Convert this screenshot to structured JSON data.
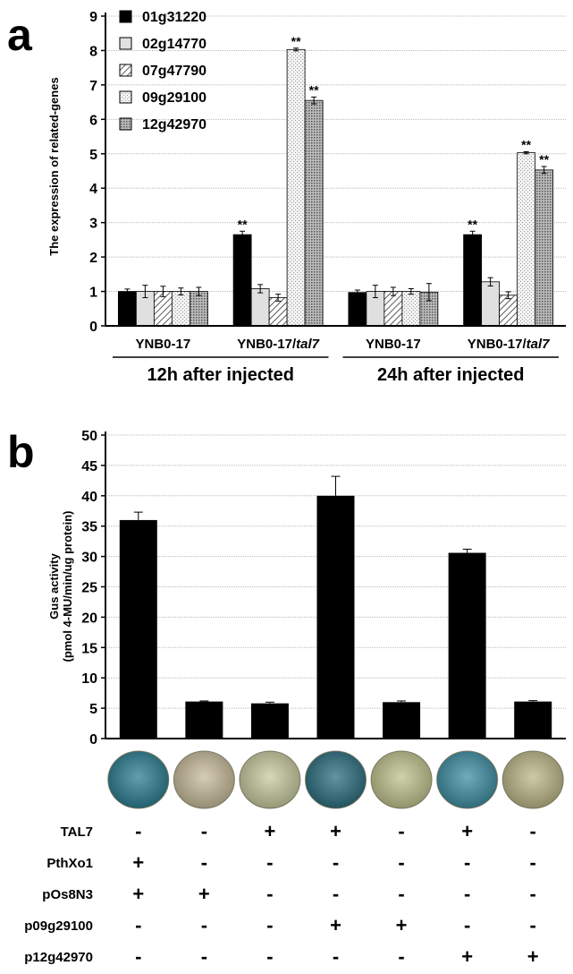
{
  "figure": {
    "panel_a_label": "a",
    "panel_b_label": "b"
  },
  "chart_data": [
    {
      "type": "bar",
      "panel": "a",
      "title": "",
      "ylabel": "The expression of related-genes",
      "xlabel": "",
      "ylim": [
        0,
        9
      ],
      "yticks": [
        0,
        1,
        2,
        3,
        4,
        5,
        6,
        7,
        8,
        9
      ],
      "grid": true,
      "legend": "top-left",
      "categories": [
        "YNB0-17",
        "YNB0-17/tal7",
        "YNB0-17",
        "YNB0-17/tal7"
      ],
      "category_labels": [
        {
          "text": "YNB0-17",
          "italic": ""
        },
        {
          "text": "YNB0-17/",
          "italic": "tal7"
        },
        {
          "text": "YNB0-17",
          "italic": ""
        },
        {
          "text": "YNB0-17/",
          "italic": "tal7"
        }
      ],
      "groups": [
        {
          "label": "12h after injected",
          "categories": [
            0,
            1
          ]
        },
        {
          "label": "24h after injected",
          "categories": [
            2,
            3
          ]
        }
      ],
      "series": [
        {
          "name": "01g31220",
          "values": [
            1.0,
            2.65,
            0.97,
            2.65
          ],
          "errors": [
            0.07,
            0.1,
            0.07,
            0.1
          ],
          "sig": [
            "",
            "**",
            "",
            "**"
          ]
        },
        {
          "name": "02g14770",
          "values": [
            1.0,
            1.08,
            1.0,
            1.28
          ],
          "errors": [
            0.18,
            0.12,
            0.18,
            0.12
          ],
          "sig": [
            "",
            "",
            "",
            ""
          ]
        },
        {
          "name": "07g47790",
          "values": [
            1.0,
            0.82,
            1.0,
            0.89
          ],
          "errors": [
            0.15,
            0.1,
            0.12,
            0.1
          ],
          "sig": [
            "",
            "",
            "",
            ""
          ]
        },
        {
          "name": "09g29100",
          "values": [
            1.0,
            8.03,
            1.0,
            5.03
          ],
          "errors": [
            0.1,
            0.04,
            0.08,
            0.03
          ],
          "sig": [
            "",
            "**",
            "",
            "**"
          ]
        },
        {
          "name": "12g42970",
          "values": [
            1.0,
            6.55,
            0.98,
            4.53
          ],
          "errors": [
            0.12,
            0.1,
            0.25,
            0.1
          ],
          "sig": [
            "",
            "**",
            "",
            "**"
          ]
        }
      ],
      "colors": {
        "black": "#000000",
        "light": "#dcdcdc",
        "stripe": "#404040"
      }
    },
    {
      "type": "bar",
      "panel": "b",
      "title": "",
      "ylabel_line1": "Gus activity",
      "ylabel_line2": "(pmol 4-MU/min/ug protein)",
      "xlabel": "",
      "ylim": [
        0,
        50
      ],
      "yticks": [
        0,
        5,
        10,
        15,
        20,
        25,
        30,
        35,
        40,
        45,
        50
      ],
      "grid": true,
      "values": [
        36.0,
        6.1,
        5.8,
        40.0,
        6.0,
        30.6,
        6.1
      ],
      "errors": [
        1.3,
        0.1,
        0.2,
        3.2,
        0.2,
        0.6,
        0.15
      ],
      "leaf_colors": [
        "#2d7f93",
        "#c9bc9c",
        "#c8cba0",
        "#2e6f80",
        "#c0c48e",
        "#3f8fa3",
        "#bdb889"
      ],
      "treatment_table": [
        {
          "label": "TAL7",
          "marks": [
            "-",
            "-",
            "+",
            "+",
            "-",
            "+",
            "-"
          ]
        },
        {
          "label": "PthXo1",
          "marks": [
            "+",
            "-",
            "-",
            "-",
            "-",
            "-",
            "-"
          ]
        },
        {
          "label": "pOs8N3",
          "marks": [
            "+",
            "+",
            "-",
            "-",
            "-",
            "-",
            "-"
          ]
        },
        {
          "label": "p09g29100",
          "marks": [
            "-",
            "-",
            "-",
            "+",
            "+",
            "-",
            "-"
          ]
        },
        {
          "label": "p12g42970",
          "marks": [
            "-",
            "-",
            "-",
            "-",
            "-",
            "+",
            "+"
          ]
        }
      ]
    }
  ]
}
